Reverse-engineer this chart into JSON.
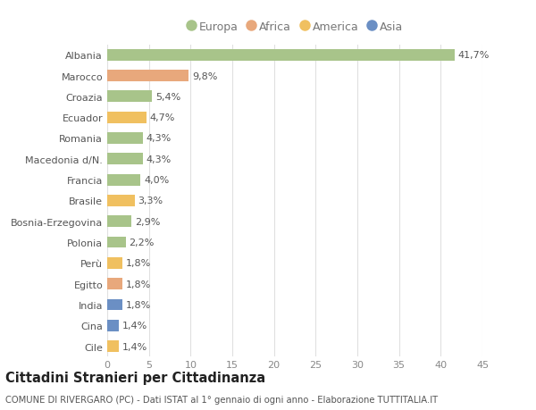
{
  "countries": [
    "Albania",
    "Marocco",
    "Croazia",
    "Ecuador",
    "Romania",
    "Macedonia d/N.",
    "Francia",
    "Brasile",
    "Bosnia-Erzegovina",
    "Polonia",
    "Perù",
    "Egitto",
    "India",
    "Cina",
    "Cile"
  ],
  "values": [
    41.7,
    9.8,
    5.4,
    4.7,
    4.3,
    4.3,
    4.0,
    3.3,
    2.9,
    2.2,
    1.8,
    1.8,
    1.8,
    1.4,
    1.4
  ],
  "labels": [
    "41,7%",
    "9,8%",
    "5,4%",
    "4,7%",
    "4,3%",
    "4,3%",
    "4,0%",
    "3,3%",
    "2,9%",
    "2,2%",
    "1,8%",
    "1,8%",
    "1,8%",
    "1,4%",
    "1,4%"
  ],
  "continents": [
    "Europa",
    "Africa",
    "Europa",
    "America",
    "Europa",
    "Europa",
    "Europa",
    "America",
    "Europa",
    "Europa",
    "America",
    "Africa",
    "Asia",
    "Asia",
    "America"
  ],
  "continent_colors": {
    "Europa": "#a8c48a",
    "Africa": "#e8a87c",
    "America": "#f0c060",
    "Asia": "#6b8fc4"
  },
  "legend_order": [
    "Europa",
    "Africa",
    "America",
    "Asia"
  ],
  "xlim": [
    0,
    45
  ],
  "xticks": [
    0,
    5,
    10,
    15,
    20,
    25,
    30,
    35,
    40,
    45
  ],
  "title": "Cittadini Stranieri per Cittadinanza",
  "subtitle": "COMUNE DI RIVERGARO (PC) - Dati ISTAT al 1° gennaio di ogni anno - Elaborazione TUTTITALIA.IT",
  "background_color": "#ffffff",
  "bar_height": 0.55,
  "grid_color": "#e0e0e0",
  "label_fontsize": 8.0,
  "ytick_fontsize": 8.0,
  "xtick_fontsize": 8.0,
  "title_fontsize": 10.5,
  "subtitle_fontsize": 7.2
}
